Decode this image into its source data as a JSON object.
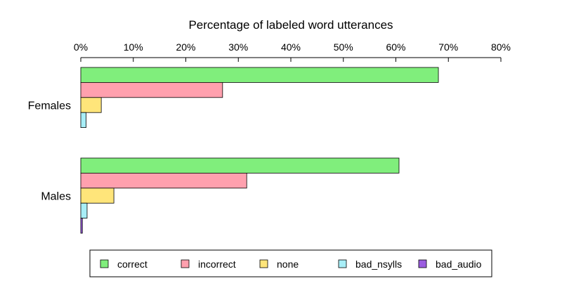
{
  "chart_data": {
    "type": "bar",
    "orientation": "horizontal",
    "title": "Percentage of labeled word utterances",
    "xlim": [
      0,
      80
    ],
    "x_ticks": [
      0,
      10,
      20,
      30,
      40,
      50,
      60,
      70,
      80
    ],
    "x_tick_labels": [
      "0%",
      "10%",
      "20%",
      "30%",
      "40%",
      "50%",
      "60%",
      "70%",
      "80%"
    ],
    "x_axis_position": "top",
    "grid": false,
    "legend_position": "bottom",
    "categories": [
      "Females",
      "Males"
    ],
    "series": [
      {
        "name": "correct",
        "color": "#80ee7c",
        "values": [
          68.1,
          60.6
        ]
      },
      {
        "name": "incorrect",
        "color": "#ffa0ae",
        "values": [
          27.0,
          31.6
        ]
      },
      {
        "name": "none",
        "color": "#ffe57a",
        "values": [
          3.9,
          6.3
        ]
      },
      {
        "name": "bad_nsylls",
        "color": "#a8eef7",
        "values": [
          1.0,
          1.2
        ]
      },
      {
        "name": "bad_audio",
        "color": "#9b5de0",
        "values": [
          0.0,
          0.3
        ]
      }
    ]
  }
}
